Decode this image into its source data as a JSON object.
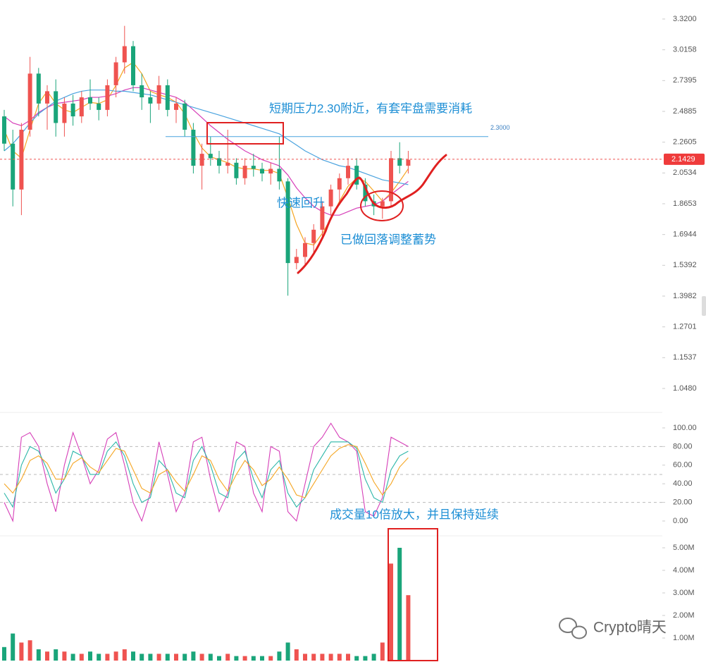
{
  "chart_data": [
    {
      "type": "candlestick",
      "log_scale": true,
      "grid": false,
      "ylim": [
        0.9832,
        3.523
      ],
      "yticks": [
        {
          "value": 3.32,
          "label": "3.3200"
        },
        {
          "value": 3.0158,
          "label": "3.0158"
        },
        {
          "value": 2.7395,
          "label": "2.7395"
        },
        {
          "value": 2.4885,
          "label": "2.4885"
        },
        {
          "value": 2.2605,
          "label": "2.2605"
        },
        {
          "value": 2.0534,
          "label": "2.0534"
        },
        {
          "value": 1.8653,
          "label": "1.8653"
        },
        {
          "value": 1.6944,
          "label": "1.6944"
        },
        {
          "value": 1.5392,
          "label": "1.5392"
        },
        {
          "value": 1.3982,
          "label": "1.3982"
        },
        {
          "value": 1.2701,
          "label": "1.2701"
        },
        {
          "value": 1.1537,
          "label": "1.1537"
        },
        {
          "value": 1.048,
          "label": "1.0480"
        }
      ],
      "up_color": "#ef5350",
      "down_color": "#1aa57a",
      "open": [
        2.45,
        2.25,
        1.95,
        2.35,
        2.8,
        2.55,
        2.65,
        2.4,
        2.55,
        2.45,
        2.6,
        2.55,
        2.5,
        2.7,
        2.9,
        3.05,
        2.7,
        2.6,
        2.55,
        2.7,
        2.5,
        2.55,
        2.35,
        2.1,
        2.18,
        2.15,
        2.1,
        2.12,
        2.02,
        2.1,
        2.08,
        2.05,
        2.08,
        2.0,
        1.55,
        1.58,
        1.65,
        1.72,
        1.85,
        1.95,
        2.02,
        2.1,
        1.98,
        1.88,
        1.85,
        1.88,
        2.15,
        2.1
      ],
      "high": [
        2.5,
        2.35,
        2.4,
        2.95,
        2.85,
        2.7,
        2.75,
        2.6,
        2.62,
        2.65,
        2.75,
        2.6,
        2.75,
        2.95,
        3.25,
        3.1,
        2.8,
        2.65,
        2.78,
        2.75,
        2.6,
        2.58,
        2.4,
        2.25,
        2.3,
        2.2,
        2.35,
        2.15,
        2.15,
        2.18,
        2.12,
        2.12,
        2.3,
        2.02,
        1.62,
        1.68,
        1.75,
        1.88,
        1.98,
        2.05,
        2.15,
        2.15,
        2.02,
        1.92,
        1.9,
        2.2,
        2.26,
        2.2
      ],
      "low": [
        2.2,
        1.85,
        1.8,
        2.3,
        2.45,
        2.35,
        2.3,
        2.3,
        2.38,
        2.4,
        2.5,
        2.42,
        2.45,
        2.6,
        2.8,
        2.65,
        2.5,
        2.4,
        2.5,
        2.45,
        2.4,
        2.3,
        2.05,
        1.95,
        2.1,
        2.05,
        2.05,
        1.98,
        1.98,
        2.03,
        2.0,
        1.98,
        1.95,
        1.4,
        1.52,
        1.54,
        1.6,
        1.68,
        1.8,
        1.88,
        1.98,
        1.95,
        1.85,
        1.8,
        1.78,
        1.85,
        2.05,
        2.05
      ],
      "close": [
        2.25,
        1.95,
        2.35,
        2.8,
        2.55,
        2.65,
        2.4,
        2.55,
        2.45,
        2.6,
        2.55,
        2.5,
        2.7,
        2.9,
        3.05,
        2.7,
        2.6,
        2.55,
        2.7,
        2.5,
        2.55,
        2.35,
        2.1,
        2.18,
        2.15,
        2.1,
        2.12,
        2.02,
        2.1,
        2.08,
        2.05,
        2.08,
        2.0,
        1.55,
        1.58,
        1.65,
        1.72,
        1.85,
        1.95,
        2.02,
        2.1,
        1.98,
        1.88,
        1.85,
        1.88,
        2.15,
        2.1,
        2.14
      ],
      "series": [
        {
          "color": "#f5a623",
          "values": [
            2.35,
            2.2,
            2.15,
            2.35,
            2.55,
            2.65,
            2.55,
            2.5,
            2.48,
            2.52,
            2.56,
            2.55,
            2.58,
            2.7,
            2.85,
            2.9,
            2.8,
            2.65,
            2.62,
            2.6,
            2.56,
            2.47,
            2.33,
            2.22,
            2.16,
            2.14,
            2.12,
            2.09,
            2.08,
            2.08,
            2.07,
            2.07,
            2.05,
            1.9,
            1.75,
            1.65,
            1.64,
            1.7,
            1.78,
            1.88,
            1.97,
            2.02,
            2.0,
            1.94,
            1.88,
            1.93,
            2.0,
            2.08
          ]
        },
        {
          "color": "#d63fb8",
          "values": [
            2.45,
            2.4,
            2.38,
            2.42,
            2.48,
            2.52,
            2.55,
            2.56,
            2.57,
            2.58,
            2.6,
            2.6,
            2.61,
            2.63,
            2.66,
            2.68,
            2.68,
            2.66,
            2.64,
            2.62,
            2.6,
            2.56,
            2.5,
            2.44,
            2.38,
            2.33,
            2.28,
            2.24,
            2.2,
            2.17,
            2.14,
            2.12,
            2.1,
            2.04,
            1.96,
            1.9,
            1.85,
            1.82,
            1.8,
            1.8,
            1.82,
            1.84,
            1.85,
            1.86,
            1.88,
            1.92,
            1.96,
            2.0
          ]
        },
        {
          "color": "#4aa3df",
          "values": [
            2.2,
            2.25,
            2.32,
            2.4,
            2.47,
            2.52,
            2.57,
            2.6,
            2.63,
            2.65,
            2.66,
            2.66,
            2.66,
            2.65,
            2.65,
            2.64,
            2.63,
            2.62,
            2.6,
            2.58,
            2.56,
            2.54,
            2.52,
            2.5,
            2.48,
            2.46,
            2.44,
            2.42,
            2.4,
            2.38,
            2.36,
            2.34,
            2.32,
            2.28,
            2.24,
            2.2,
            2.17,
            2.14,
            2.12,
            2.1,
            2.09,
            2.07,
            2.05,
            2.03,
            2.01,
            2.0,
            1.99,
            1.98
          ]
        }
      ],
      "resistance": {
        "value": 2.3,
        "label": "2.3000"
      },
      "price_marker": {
        "value": 2.1429,
        "label": "2.1429"
      },
      "annotations": [
        "短期压力2.30附近，有套牢盘需要消耗",
        "快速回升",
        "已做回落调整蓄势",
        "成交量10倍放大，并且保持延续"
      ],
      "watermark": "Crypto晴天"
    },
    {
      "type": "line",
      "ylim": [
        -15,
        113
      ],
      "yticks": [
        {
          "value": 100,
          "label": "100.00"
        },
        {
          "value": 80,
          "label": "80.00"
        },
        {
          "value": 60,
          "label": "60.00"
        },
        {
          "value": 40,
          "label": "40.00"
        },
        {
          "value": 20,
          "label": "20.00"
        },
        {
          "value": 0,
          "label": "0.00"
        }
      ],
      "levels": [
        80,
        50,
        20
      ],
      "series": [
        {
          "color": "#d63fb8",
          "values": [
            20,
            0,
            90,
            95,
            80,
            40,
            10,
            60,
            95,
            70,
            40,
            55,
            88,
            95,
            60,
            20,
            0,
            30,
            85,
            50,
            10,
            30,
            85,
            90,
            45,
            10,
            30,
            85,
            80,
            30,
            10,
            80,
            75,
            10,
            0,
            40,
            80,
            90,
            105,
            90,
            85,
            75,
            10,
            5,
            25,
            90,
            85,
            80
          ]
        },
        {
          "color": "#2bb6a8",
          "values": [
            30,
            15,
            60,
            80,
            75,
            55,
            30,
            45,
            75,
            70,
            50,
            50,
            75,
            85,
            70,
            40,
            20,
            25,
            65,
            55,
            30,
            25,
            65,
            80,
            60,
            30,
            25,
            65,
            75,
            45,
            25,
            55,
            65,
            30,
            15,
            25,
            55,
            70,
            85,
            85,
            85,
            78,
            45,
            25,
            20,
            55,
            70,
            75
          ]
        },
        {
          "color": "#f5a623",
          "values": [
            40,
            30,
            45,
            65,
            70,
            62,
            45,
            45,
            62,
            68,
            58,
            52,
            65,
            78,
            75,
            55,
            35,
            30,
            50,
            55,
            42,
            32,
            50,
            70,
            65,
            45,
            32,
            50,
            65,
            55,
            38,
            45,
            58,
            45,
            28,
            25,
            40,
            55,
            70,
            78,
            82,
            80,
            62,
            42,
            28,
            40,
            58,
            68
          ]
        }
      ]
    },
    {
      "type": "bar",
      "ylim": [
        0,
        5375000
      ],
      "yticks": [
        {
          "value": 5000000,
          "label": "5.00M"
        },
        {
          "value": 4000000,
          "label": "4.00M"
        },
        {
          "value": 3000000,
          "label": "3.00M"
        },
        {
          "value": 2000000,
          "label": "2.00M"
        },
        {
          "value": 1000000,
          "label": "1.00M"
        }
      ],
      "values": [
        600000,
        1200000,
        800000,
        900000,
        500000,
        400000,
        500000,
        400000,
        300000,
        300000,
        400000,
        300000,
        300000,
        400000,
        500000,
        400000,
        300000,
        300000,
        300000,
        300000,
        300000,
        300000,
        400000,
        300000,
        300000,
        200000,
        300000,
        200000,
        200000,
        200000,
        200000,
        200000,
        400000,
        800000,
        500000,
        300000,
        300000,
        300000,
        300000,
        300000,
        300000,
        200000,
        200000,
        300000,
        800000,
        4300000,
        5000000,
        2900000
      ]
    }
  ]
}
